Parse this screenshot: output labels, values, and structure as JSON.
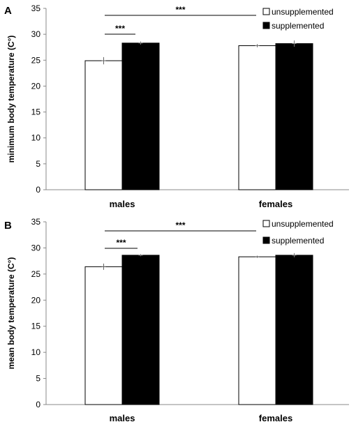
{
  "chart_data": [
    {
      "type": "bar",
      "panel": "A",
      "categories": [
        "males",
        "females"
      ],
      "series": [
        {
          "name": "unsupplemented",
          "color": "#ffffff",
          "values": [
            24.9,
            27.8
          ],
          "errors": [
            0.7,
            0.3
          ]
        },
        {
          "name": "supplemented",
          "color": "#000000",
          "values": [
            28.3,
            28.2
          ],
          "errors": [
            0.3,
            0.6
          ]
        }
      ],
      "ylabel": "minimum body temperature (C°)",
      "xlabel": "",
      "ylim": [
        0,
        35
      ],
      "yticks": [
        "0",
        "5",
        "10",
        "15",
        "20",
        "25",
        "30",
        "35"
      ],
      "legend": "top-right",
      "grid": false,
      "significance": [
        {
          "label": "***",
          "from": "males-unsupplemented",
          "to": "females-unsupplemented"
        },
        {
          "label": "***",
          "from": "males-unsupplemented",
          "to": "males-supplemented"
        }
      ]
    },
    {
      "type": "bar",
      "panel": "B",
      "categories": [
        "males",
        "females"
      ],
      "series": [
        {
          "name": "unsupplemented",
          "color": "#ffffff",
          "values": [
            26.4,
            28.3
          ],
          "errors": [
            0.6,
            0.2
          ]
        },
        {
          "name": "supplemented",
          "color": "#000000",
          "values": [
            28.6,
            28.6
          ],
          "errors": [
            0.2,
            0.4
          ]
        }
      ],
      "ylabel": "mean body temperature (C°)",
      "xlabel": "",
      "ylim": [
        0,
        35
      ],
      "yticks": [
        "0",
        "5",
        "10",
        "15",
        "20",
        "25",
        "30",
        "35"
      ],
      "legend": "top-right",
      "grid": false,
      "significance": [
        {
          "label": "***",
          "from": "males-unsupplemented",
          "to": "females-unsupplemented"
        },
        {
          "label": "***",
          "from": "males-unsupplemented",
          "to": "males-supplemented"
        }
      ]
    }
  ]
}
